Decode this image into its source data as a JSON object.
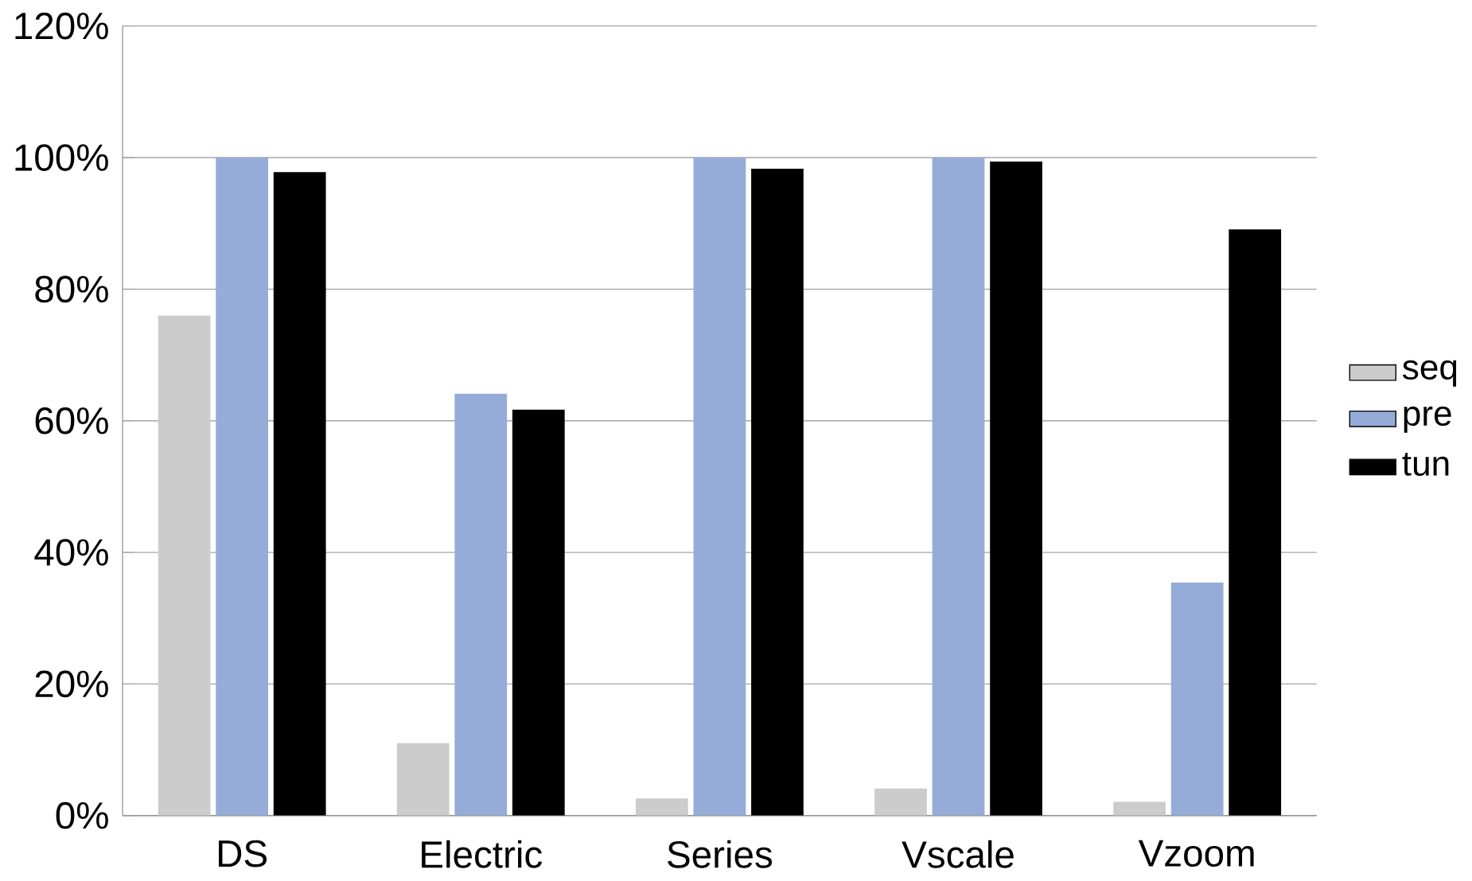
{
  "chart_data": {
    "type": "bar",
    "categories": [
      "DS",
      "Electric",
      "Series",
      "Vscale",
      "Vzoom"
    ],
    "series": [
      {
        "name": "seq",
        "color": "#cccccc",
        "values": [
          76,
          11,
          2.6,
          4.1,
          2.1
        ]
      },
      {
        "name": "pre",
        "color": "#95abd8",
        "values": [
          100,
          64.1,
          100,
          100,
          35.4
        ]
      },
      {
        "name": "tun",
        "color": "#000000",
        "values": [
          97.8,
          61.7,
          98.3,
          99.4,
          89.1
        ]
      }
    ],
    "ylim": [
      0,
      120
    ],
    "yticks": [
      {
        "value": 0,
        "label": "0%"
      },
      {
        "value": 20,
        "label": "20%"
      },
      {
        "value": 40,
        "label": "40%"
      },
      {
        "value": 60,
        "label": "60%"
      },
      {
        "value": 80,
        "label": "80%"
      },
      {
        "value": 100,
        "label": "100%"
      },
      {
        "value": 120,
        "label": "120%"
      }
    ],
    "grid": "y",
    "legend": "right"
  }
}
